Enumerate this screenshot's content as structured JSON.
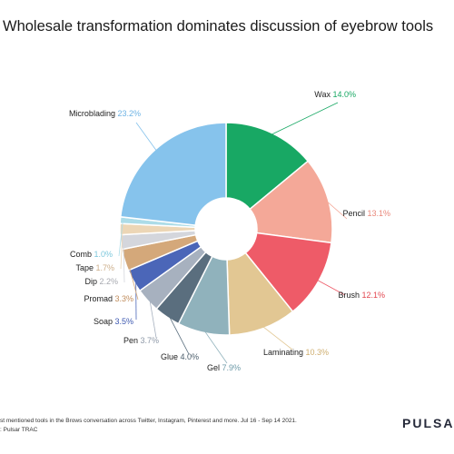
{
  "title": "Wholesale transformation dominates discussion of eyebrow tools",
  "footer": {
    "line1": "st mentioned tools in the Brows conversation across Twitter, Instagram, Pinterest and more. Jul 16 - Sep 14 2021.",
    "line2": ": Pulsar TRAC"
  },
  "brand": "PULSAR",
  "chart_data": {
    "type": "pie",
    "title": "Wholesale transformation dominates discussion of eyebrow tools",
    "donut": true,
    "categories": [
      "Wax",
      "Pencil",
      "Brush",
      "Laminating",
      "Gel",
      "Glue",
      "Pen",
      "Soap",
      "Promad",
      "Dip",
      "Tape",
      "Comb",
      "Microblading"
    ],
    "values": [
      14.0,
      13.1,
      12.1,
      10.3,
      7.9,
      4.0,
      3.7,
      3.5,
      3.3,
      2.2,
      1.7,
      1.0,
      23.2
    ],
    "value_labels": [
      "14.0%",
      "13.1%",
      "12.1%",
      "10.3%",
      "7.9%",
      "4.0%",
      "3.7%",
      "3.5%",
      "3.3%",
      "2.2%",
      "1.7%",
      "1.0%",
      "23.2%"
    ],
    "colors": [
      "#18a864",
      "#f4a898",
      "#ee5b68",
      "#e2c793",
      "#90b2bc",
      "#5a6e7e",
      "#a7b1bf",
      "#4b66b8",
      "#d4a87a",
      "#d4d6dc",
      "#ecd6b6",
      "#acdce8",
      "#86c3ec"
    ],
    "label_colors": [
      "#18a864",
      "#e9877a",
      "#e2464f",
      "#cfae6f",
      "#6e9aa8",
      "#4a5c6a",
      "#8d98a7",
      "#3d58b0",
      "#c08c5c",
      "#a7a9b0",
      "#ccae8a",
      "#7cc7dc",
      "#6db3e4"
    ],
    "start_angle_deg": 0,
    "direction": "clockwise"
  }
}
